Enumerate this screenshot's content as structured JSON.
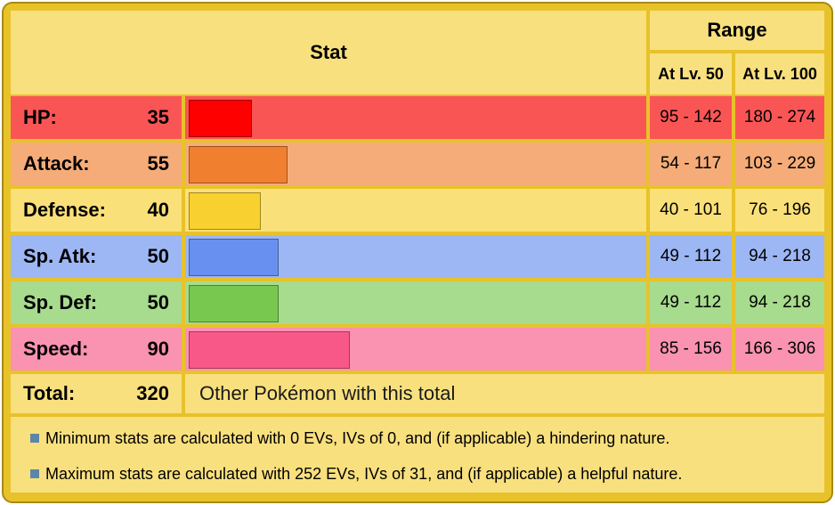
{
  "header": {
    "stat": "Stat",
    "range": "Range",
    "lv50": "At Lv. 50",
    "lv100": "At Lv. 100"
  },
  "max_stat": 255,
  "stats": [
    {
      "label": "HP:",
      "value": 35,
      "lv50": "95 - 142",
      "lv100": "180 - 274",
      "row_color": "#fa5555",
      "bar_color": "#ff0000",
      "bar_border": "#a80000"
    },
    {
      "label": "Attack:",
      "value": 55,
      "lv50": "54 - 117",
      "lv100": "103 - 229",
      "row_color": "#f5ac78",
      "bar_color": "#f08030",
      "bar_border": "#9c531f"
    },
    {
      "label": "Defense:",
      "value": 40,
      "lv50": "40 - 101",
      "lv100": "76 - 196",
      "row_color": "#fae078",
      "bar_color": "#f8d030",
      "bar_border": "#a1871f"
    },
    {
      "label": "Sp. Atk:",
      "value": 50,
      "lv50": "49 - 112",
      "lv100": "94 - 218",
      "row_color": "#9db7f5",
      "bar_color": "#6890f0",
      "bar_border": "#445e9c"
    },
    {
      "label": "Sp. Def:",
      "value": 50,
      "lv50": "49 - 112",
      "lv100": "94 - 218",
      "row_color": "#a7db8d",
      "bar_color": "#78c850",
      "bar_border": "#4e8234"
    },
    {
      "label": "Speed:",
      "value": 90,
      "lv50": "85 - 156",
      "lv100": "166 - 306",
      "row_color": "#fa92b2",
      "bar_color": "#f85888",
      "bar_border": "#a13959"
    }
  ],
  "total": {
    "label": "Total:",
    "value": "320",
    "link": "Other Pokémon with this total"
  },
  "notes": {
    "min": "Minimum stats are calculated with 0 EVs, IVs of 0, and (if applicable) a hindering nature.",
    "max": "Maximum stats are calculated with 252 EVs, IVs of 31, and (if applicable) a helpful nature."
  },
  "colors": {
    "header_bg": "#f9e07e",
    "border": "#e8c22a",
    "note_bullet": "#5b86a8"
  }
}
